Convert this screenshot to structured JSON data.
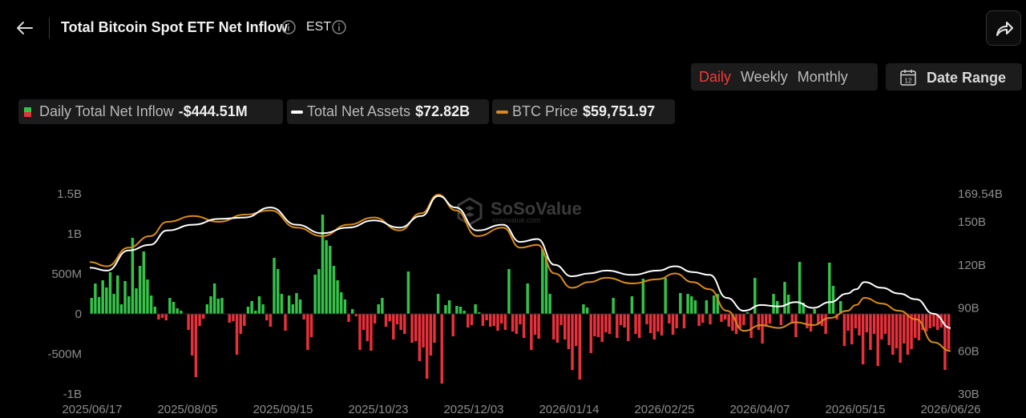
{
  "header": {
    "title": "Total Bitcoin Spot ETF Net Inflow",
    "timezone": "EST"
  },
  "period_tabs": [
    {
      "label": "Daily",
      "active": true
    },
    {
      "label": "Weekly",
      "active": false
    },
    {
      "label": "Monthly",
      "active": false
    }
  ],
  "date_range": {
    "label": "Date Range",
    "icon_day": "12"
  },
  "legend": {
    "inflow": {
      "label": "Daily Total Net Inflow",
      "value": "-$444.51M"
    },
    "assets": {
      "label": "Total Net Assets",
      "value": "$72.82B"
    },
    "price": {
      "label": "BTC Price",
      "value": "$59,751.97"
    }
  },
  "watermark": {
    "brand": "SoSoValue",
    "site": "sosovalue.com"
  },
  "colors": {
    "inflow_positive": "#35c24a",
    "inflow_negative": "#e8313b",
    "total_net_assets": "#ffffff",
    "btc_price": "#d88a1c",
    "period_active": "#f23b3b"
  },
  "chart_data": {
    "type": "bar",
    "title": "Total Bitcoin Spot ETF Net Inflow",
    "xlabels": [
      "2025/06/17",
      "2025/08/05",
      "2025/09/15",
      "2025/10/23",
      "2025/12/03",
      "2026/01/14",
      "2026/02/25",
      "2026/04/07",
      "2026/05/15",
      "2026/06/26"
    ],
    "y_left": {
      "ticks": [
        "1.5B",
        "1B",
        "500M",
        "0",
        "-500M",
        "-1B"
      ],
      "min": -1000,
      "max": 1500,
      "unit": "M USD"
    },
    "y_right": {
      "ticks": [
        "169.54B",
        "150B",
        "120B",
        "90B",
        "60B",
        "30B"
      ],
      "min": 30,
      "max": 169.54,
      "unit": "B USD"
    },
    "grid": false,
    "series": [
      {
        "name": "Daily Total Net Inflow",
        "type": "bar",
        "axis": "left",
        "values": [
          200,
          380,
          210,
          420,
          330,
          520,
          250,
          480,
          120,
          410,
          220,
          950,
          320,
          600,
          780,
          430,
          230,
          90,
          -70,
          -50,
          -80,
          200,
          150,
          70,
          40,
          0,
          -200,
          -520,
          -790,
          -150,
          -60,
          120,
          220,
          380,
          190,
          200,
          0,
          -110,
          -90,
          -510,
          -250,
          -150,
          90,
          160,
          40,
          220,
          120,
          -80,
          -160,
          700,
          560,
          250,
          -210,
          230,
          120,
          260,
          180,
          -70,
          -450,
          -290,
          490,
          560,
          1240,
          920,
          850,
          600,
          420,
          270,
          180,
          -100,
          60,
          -30,
          -450,
          -200,
          -340,
          -460,
          -120,
          120,
          200,
          -160,
          -90,
          -320,
          -130,
          -200,
          -250,
          530,
          -360,
          -340,
          -590,
          -420,
          -810,
          -520,
          -360,
          250,
          -870,
          110,
          170,
          -280,
          100,
          90,
          40,
          -170,
          -140,
          120,
          20,
          -150,
          -80,
          -160,
          -150,
          -210,
          -120,
          -200,
          560,
          -220,
          -250,
          -130,
          -300,
          380,
          -450,
          -260,
          -310,
          810,
          720,
          250,
          -320,
          -360,
          -140,
          -320,
          -440,
          -700,
          -400,
          -820,
          120,
          80,
          -490,
          -280,
          -290,
          -350,
          -230,
          -250,
          200,
          -300,
          -140,
          -170,
          -340,
          220,
          -250,
          -300,
          440,
          -130,
          -240,
          -320,
          -220,
          -270,
          450,
          -120,
          -260,
          -180,
          260,
          -180,
          250,
          220,
          170,
          -150,
          -110,
          170,
          -130,
          230,
          250,
          -100,
          -70,
          -160,
          -210,
          -250,
          -180,
          -140,
          20,
          -300,
          450,
          -200,
          -370,
          -160,
          -120,
          250,
          160,
          -140,
          400,
          240,
          -120,
          -290,
          650,
          140,
          -180,
          -220,
          60,
          -130,
          -150,
          -250,
          640,
          350,
          -70,
          160,
          -400,
          -210,
          -380,
          -180,
          -270,
          -630,
          -230,
          -450,
          -250,
          -650,
          -320,
          -250,
          -390,
          -510,
          -430,
          -610,
          -370,
          -510,
          -440,
          -300,
          -330,
          -200,
          -220,
          -180,
          -160,
          -200,
          -170,
          -700,
          -445
        ],
        "x_range": [
          "2025/06/17",
          "2026/06/26"
        ]
      },
      {
        "name": "Total Net Assets",
        "type": "line",
        "axis": "right",
        "points": [
          [
            0,
            118
          ],
          [
            0.02,
            116
          ],
          [
            0.045,
            130
          ],
          [
            0.07,
            134
          ],
          [
            0.09,
            144
          ],
          [
            0.12,
            148
          ],
          [
            0.15,
            152
          ],
          [
            0.18,
            153
          ],
          [
            0.21,
            160
          ],
          [
            0.24,
            148
          ],
          [
            0.27,
            142
          ],
          [
            0.3,
            146
          ],
          [
            0.33,
            151
          ],
          [
            0.36,
            146
          ],
          [
            0.385,
            154
          ],
          [
            0.405,
            168
          ],
          [
            0.425,
            160
          ],
          [
            0.45,
            144
          ],
          [
            0.48,
            148
          ],
          [
            0.5,
            136
          ],
          [
            0.52,
            138
          ],
          [
            0.54,
            120
          ],
          [
            0.56,
            112
          ],
          [
            0.58,
            114
          ],
          [
            0.6,
            116
          ],
          [
            0.63,
            113
          ],
          [
            0.66,
            116
          ],
          [
            0.68,
            119
          ],
          [
            0.7,
            115
          ],
          [
            0.72,
            113
          ],
          [
            0.74,
            97
          ],
          [
            0.76,
            88
          ],
          [
            0.78,
            92
          ],
          [
            0.8,
            91
          ],
          [
            0.82,
            94
          ],
          [
            0.84,
            90
          ],
          [
            0.86,
            94
          ],
          [
            0.88,
            100
          ],
          [
            0.89,
            103
          ],
          [
            0.9,
            108
          ],
          [
            0.92,
            104
          ],
          [
            0.94,
            100
          ],
          [
            0.96,
            96
          ],
          [
            0.98,
            86
          ],
          [
            1,
            76
          ]
        ]
      },
      {
        "name": "BTC Price",
        "type": "line",
        "axis": "right",
        "points": [
          [
            0,
            122
          ],
          [
            0.02,
            119
          ],
          [
            0.045,
            132
          ],
          [
            0.07,
            140
          ],
          [
            0.09,
            150
          ],
          [
            0.12,
            154
          ],
          [
            0.15,
            150
          ],
          [
            0.18,
            155
          ],
          [
            0.21,
            158
          ],
          [
            0.24,
            146
          ],
          [
            0.27,
            140
          ],
          [
            0.3,
            148
          ],
          [
            0.33,
            153
          ],
          [
            0.36,
            144
          ],
          [
            0.385,
            156
          ],
          [
            0.405,
            169
          ],
          [
            0.425,
            158
          ],
          [
            0.45,
            140
          ],
          [
            0.48,
            146
          ],
          [
            0.5,
            132
          ],
          [
            0.52,
            134
          ],
          [
            0.54,
            114
          ],
          [
            0.56,
            104
          ],
          [
            0.58,
            108
          ],
          [
            0.6,
            111
          ],
          [
            0.63,
            107
          ],
          [
            0.66,
            110
          ],
          [
            0.68,
            114
          ],
          [
            0.7,
            108
          ],
          [
            0.72,
            103
          ],
          [
            0.74,
            88
          ],
          [
            0.76,
            74
          ],
          [
            0.78,
            78
          ],
          [
            0.8,
            76
          ],
          [
            0.82,
            80
          ],
          [
            0.84,
            78
          ],
          [
            0.86,
            83
          ],
          [
            0.88,
            88
          ],
          [
            0.89,
            92
          ],
          [
            0.9,
            97
          ],
          [
            0.92,
            93
          ],
          [
            0.94,
            88
          ],
          [
            0.96,
            82
          ],
          [
            0.98,
            66
          ],
          [
            1,
            60
          ]
        ]
      }
    ],
    "legend_position": "top-left"
  }
}
